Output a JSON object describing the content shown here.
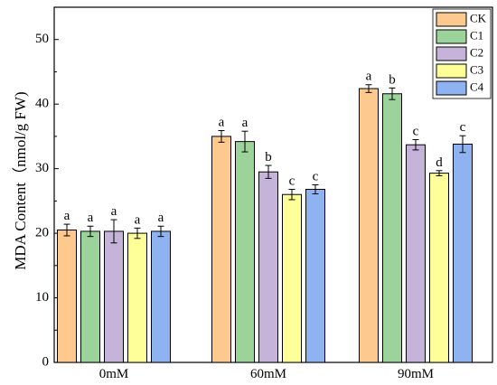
{
  "chart_data": {
    "type": "bar",
    "title": "",
    "xlabel": "",
    "ylabel": "MDA Content（nmol/g FW)",
    "ylim": [
      0,
      55
    ],
    "yticks": [
      0,
      10,
      20,
      30,
      40,
      50
    ],
    "categories": [
      "0mM",
      "60mM",
      "90mM"
    ],
    "legend_position": "top-right",
    "grid": false,
    "series": [
      {
        "name": "CK",
        "color": "#FDC98E",
        "values": [
          20.5,
          35.0,
          42.4
        ],
        "errors": [
          0.9,
          0.9,
          0.6
        ],
        "letters": [
          "a",
          "a",
          "a"
        ]
      },
      {
        "name": "C1",
        "color": "#9BD39B",
        "values": [
          20.3,
          34.2,
          41.6
        ],
        "errors": [
          0.8,
          1.6,
          0.9
        ],
        "letters": [
          "a",
          "a",
          "b"
        ]
      },
      {
        "name": "C2",
        "color": "#C5B3D9",
        "values": [
          20.3,
          29.5,
          33.7
        ],
        "errors": [
          1.8,
          1.0,
          0.8
        ],
        "letters": [
          "a",
          "b",
          "c"
        ]
      },
      {
        "name": "C3",
        "color": "#FFFF99",
        "values": [
          20.0,
          26.0,
          29.3
        ],
        "errors": [
          0.8,
          0.8,
          0.4
        ],
        "letters": [
          "a",
          "c",
          "d"
        ]
      },
      {
        "name": "C4",
        "color": "#8FB2F0",
        "values": [
          20.3,
          26.8,
          33.8
        ],
        "errors": [
          0.8,
          0.7,
          1.3
        ],
        "letters": [
          "a",
          "c",
          "c"
        ]
      }
    ]
  }
}
